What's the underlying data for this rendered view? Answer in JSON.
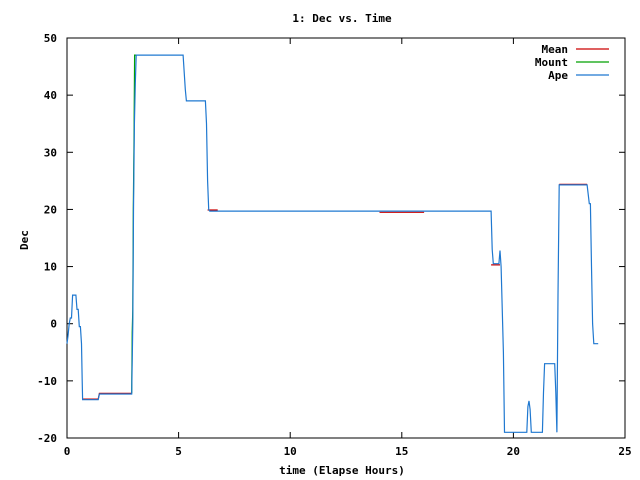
{
  "chart_data": {
    "type": "line",
    "title": "1: Dec vs. Time",
    "xlabel": "time (Elapse Hours)",
    "ylabel": "Dec",
    "xlim": [
      0,
      25
    ],
    "ylim": [
      -20,
      50
    ],
    "xticks": [
      0,
      5,
      10,
      15,
      20,
      25
    ],
    "yticks": [
      -20,
      -10,
      0,
      10,
      20,
      30,
      40,
      50
    ],
    "grid": false,
    "legend_position": "top-right",
    "series": [
      {
        "name": "Mean",
        "color": "#cc0000",
        "points": [
          [
            0.7,
            -13.2
          ],
          [
            1.4,
            -13.2
          ],
          [
            1.45,
            -12.2
          ],
          [
            2.9,
            -12.2
          ],
          [
            null,
            null
          ],
          [
            6.3,
            19.9
          ],
          [
            6.75,
            19.9
          ],
          [
            null,
            null
          ],
          [
            14.0,
            19.5
          ],
          [
            16.0,
            19.5
          ],
          [
            null,
            null
          ],
          [
            19.0,
            10.3
          ],
          [
            19.4,
            10.3
          ],
          [
            null,
            null
          ],
          [
            22.05,
            24.4
          ],
          [
            23.3,
            24.4
          ]
        ]
      },
      {
        "name": "Mount",
        "color": "#00a000",
        "points": [
          [
            2.9,
            -12.2
          ],
          [
            2.92,
            -1.5
          ],
          [
            2.95,
            2.5
          ],
          [
            2.97,
            20
          ],
          [
            3.0,
            32
          ],
          [
            3.03,
            47
          ],
          [
            3.1,
            47
          ]
        ]
      },
      {
        "name": "Ape",
        "color": "#1f78d0",
        "points": [
          [
            0,
            -3.5
          ],
          [
            0.05,
            -2
          ],
          [
            0.1,
            0
          ],
          [
            0.15,
            1
          ],
          [
            0.2,
            1
          ],
          [
            0.25,
            5
          ],
          [
            0.4,
            5
          ],
          [
            0.45,
            2.5
          ],
          [
            0.5,
            2.5
          ],
          [
            0.55,
            -0.5
          ],
          [
            0.6,
            -0.5
          ],
          [
            0.65,
            -3.5
          ],
          [
            0.68,
            -10
          ],
          [
            0.7,
            -13.3
          ],
          [
            1.4,
            -13.3
          ],
          [
            1.45,
            -12.3
          ],
          [
            2.9,
            -12.3
          ],
          [
            2.95,
            0
          ],
          [
            2.98,
            20
          ],
          [
            3.02,
            35
          ],
          [
            3.06,
            42
          ],
          [
            3.1,
            47
          ],
          [
            5.2,
            47
          ],
          [
            5.3,
            41
          ],
          [
            5.35,
            39
          ],
          [
            6.2,
            39
          ],
          [
            6.25,
            35
          ],
          [
            6.3,
            25
          ],
          [
            6.35,
            20
          ],
          [
            6.4,
            19.7
          ],
          [
            19.0,
            19.7
          ],
          [
            19.05,
            13
          ],
          [
            19.1,
            10.5
          ],
          [
            19.35,
            10.5
          ],
          [
            19.4,
            12.8
          ],
          [
            19.45,
            10
          ],
          [
            19.55,
            -5
          ],
          [
            19.6,
            -19
          ],
          [
            20.6,
            -19
          ],
          [
            20.65,
            -14.5
          ],
          [
            20.7,
            -13.5
          ],
          [
            20.75,
            -15
          ],
          [
            20.8,
            -19
          ],
          [
            21.3,
            -19
          ],
          [
            21.35,
            -12
          ],
          [
            21.4,
            -7
          ],
          [
            21.85,
            -7
          ],
          [
            21.9,
            -12
          ],
          [
            21.95,
            -19
          ],
          [
            22.0,
            5
          ],
          [
            22.05,
            24.3
          ],
          [
            23.3,
            24.3
          ],
          [
            23.4,
            21
          ],
          [
            23.45,
            21
          ],
          [
            23.5,
            10
          ],
          [
            23.55,
            0
          ],
          [
            23.6,
            -3.5
          ],
          [
            23.8,
            -3.5
          ]
        ]
      }
    ]
  }
}
